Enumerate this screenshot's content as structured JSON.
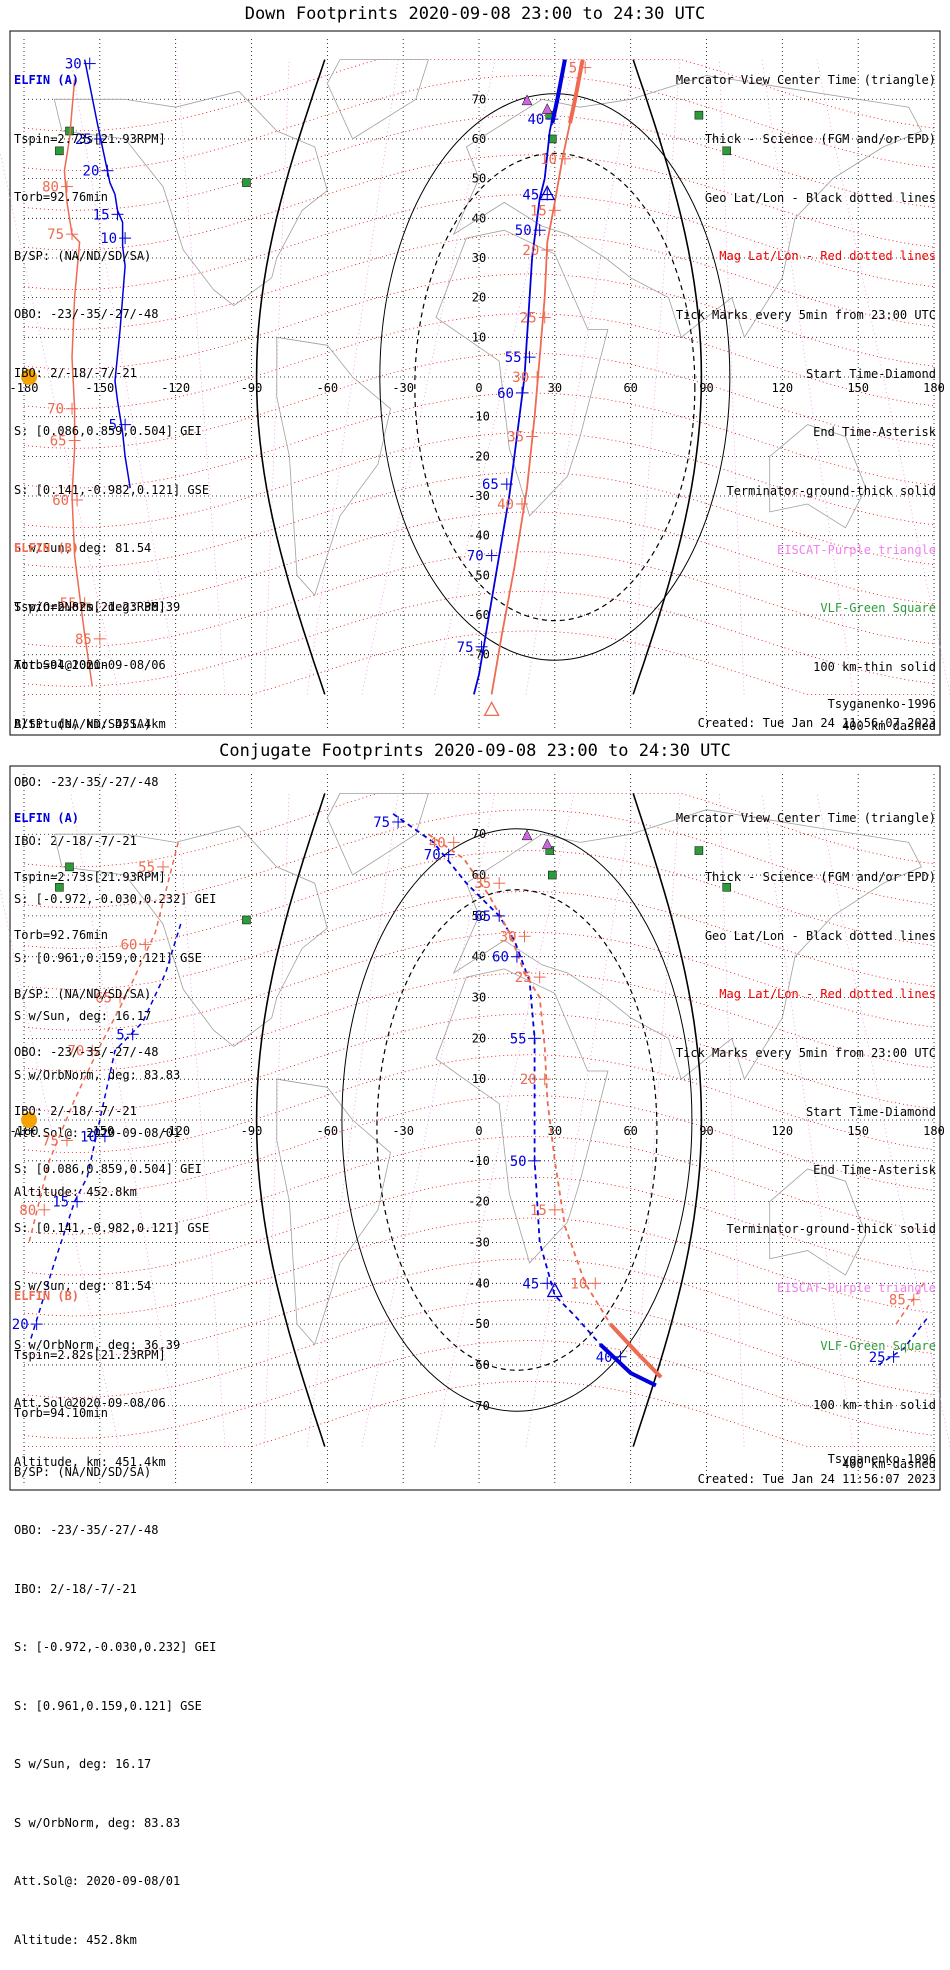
{
  "panels": [
    {
      "id": "down",
      "title": "Down Footprints 2020-09-08 23:00 to 24:30 UTC",
      "elfin_a": {
        "head": "ELFIN (A)",
        "lines": [
          "Tspin=2.73s[21.93RPM]",
          "Torb=92.76min",
          "B/SP: (NA/ND/SD/SA)",
          "OBO: -23/-35/-27/-48",
          "IBO: 2/-18/-7/-21",
          "S: [0.086,0.859,0.504] GEI",
          "S: [0.141,-0.982,0.121] GSE",
          "S w/Sun, deg: 81.54",
          "S w/OrbNorm, deg: 36.39",
          "Att.Sol@2020-09-08/06",
          "Altitude, km: 451.4km"
        ]
      },
      "elfin_b": {
        "head": "ELFIN (B)",
        "lines": [
          "Tspin=2.82s[21.23RPM]",
          "Torb=94.10min",
          "B/SP: (NA/ND/SD/SA)",
          "OBO: -23/-35/-27/-48",
          "IBO: 2/-18/-7/-21",
          "S: [-0.972,-0.030,0.232] GEI",
          "S: [0.961,0.159,0.121] GSE",
          "S w/Sun, deg: 16.17",
          "S w/OrbNorm, deg: 83.83",
          "Att.Sol@: 2020-09-08/01",
          "Altitude: 452.8km"
        ]
      },
      "model": "Tsyganenko-1996",
      "created": "Created: Tue Jan 24 11:56:07 2023"
    },
    {
      "id": "conj",
      "title": "Conjugate Footprints 2020-09-08 23:00 to 24:30 UTC",
      "elfin_a": {
        "head": "ELFIN (A)",
        "lines": [
          "Tspin=2.73s[21.93RPM]",
          "Torb=92.76min",
          "B/SP: (NA/ND/SD/SA)",
          "OBO: -23/-35/-27/-48",
          "IBO: 2/-18/-7/-21",
          "S: [0.086,0.859,0.504] GEI",
          "S: [0.141,-0.982,0.121] GSE",
          "S w/Sun, deg: 81.54",
          "S w/OrbNorm, deg: 36.39",
          "Att.Sol@2020-09-08/06",
          "Altitude, km: 451.4km"
        ]
      },
      "elfin_b": {
        "head": "ELFIN (B)",
        "lines": [
          "Tspin=2.82s[21.23RPM]",
          "Torb=94.10min",
          "B/SP: (NA/ND/SD/SA)",
          "OBO: -23/-35/-27/-48",
          "IBO: 2/-18/-7/-21",
          "S: [-0.972,-0.030,0.232] GEI",
          "S: [0.961,0.159,0.121] GSE",
          "S w/Sun, deg: 16.17",
          "S w/OrbNorm, deg: 83.83",
          "Att.Sol@: 2020-09-08/01",
          "Altitude: 452.8km"
        ]
      },
      "model": "Tsyganenko-1996",
      "created": "Created: Tue Jan 24 11:56:07 2023"
    }
  ],
  "legend": [
    {
      "text": "Mercator View Center Time (triangle)",
      "color": "#000000"
    },
    {
      "text": "Thick - Science (FGM and/or EPD)",
      "color": "#000000"
    },
    {
      "text": "Geo Lat/Lon - Black dotted lines",
      "color": "#000000"
    },
    {
      "text": "Mag Lat/Lon - Red dotted lines",
      "color": "#ee0000"
    },
    {
      "text": "Tick Marks every 5min from 23:00 UTC",
      "color": "#000000"
    },
    {
      "text": "Start Time-Diamond",
      "color": "#000000"
    },
    {
      "text": "End Time-Asterisk",
      "color": "#000000"
    },
    {
      "text": "Terminator-ground-thick solid",
      "color": "#000000"
    },
    {
      "text": "EISCAT-Purple triangle",
      "color": "#ee82ee"
    },
    {
      "text": "VLF-Green Square",
      "color": "#2e9b3a"
    },
    {
      "text": "100 km-thin solid",
      "color": "#000000"
    },
    {
      "text": "400 km-dashed",
      "color": "#000000"
    }
  ],
  "map": {
    "lon_ticks": [
      "-180",
      "-150",
      "-120",
      "-90",
      "-60",
      "-30",
      "0",
      "30",
      "60",
      "90",
      "120",
      "150",
      "180"
    ],
    "lat_ticks": [
      "-70",
      "-60",
      "-50",
      "-40",
      "-30",
      "-20",
      "-10",
      "0",
      "10",
      "20",
      "30",
      "40",
      "50",
      "60",
      "70"
    ],
    "lon_range": [
      -180,
      180
    ],
    "lat_range": [
      -80,
      80
    ],
    "colors": {
      "elfin_a": "#0000dd",
      "elfin_b": "#ee6a50",
      "mag_grid": "#ee0000",
      "geo_grid": "#000000",
      "eiscat": "#cc66dd",
      "vlf": "#2e9b3a",
      "sun": "#f5a300"
    },
    "eiscat_sites": [
      [
        19,
        69.6
      ],
      [
        27,
        67.4
      ]
    ],
    "vlf_sites": [
      [
        -162,
        62
      ],
      [
        -166,
        57
      ],
      [
        -92,
        49
      ],
      [
        28,
        66
      ],
      [
        29,
        60
      ],
      [
        87,
        66
      ],
      [
        98,
        57
      ]
    ]
  },
  "chart_data": [
    {
      "type": "map",
      "panel": "down",
      "elfin_a_track": [
        [
          -156,
          80
        ],
        [
          -151,
          64
        ],
        [
          -148,
          55
        ],
        [
          -146,
          49
        ],
        [
          -144,
          46
        ],
        [
          -143,
          42
        ],
        [
          -141,
          39
        ],
        [
          -141,
          33
        ],
        [
          -140,
          28
        ],
        [
          -142,
          12
        ],
        [
          -144,
          -1
        ],
        [
          -143,
          -6
        ],
        [
          -141,
          -14
        ],
        [
          -140,
          -20
        ],
        [
          -138,
          -28
        ]
      ],
      "elfin_a_ticks": [
        {
          "label": "30",
          "pos": [
            -154,
            79
          ]
        },
        {
          "label": "25",
          "pos": [
            -150,
            60
          ]
        },
        {
          "label": "20",
          "pos": [
            -147,
            52
          ]
        },
        {
          "label": "15",
          "pos": [
            -143,
            41
          ]
        },
        {
          "label": "10",
          "pos": [
            -140,
            35
          ]
        },
        {
          "label": "5",
          "pos": [
            -140,
            -12
          ]
        }
      ],
      "elfin_b_track": [
        [
          -160,
          75
        ],
        [
          -162,
          60
        ],
        [
          -164,
          52
        ],
        [
          -163,
          44
        ],
        [
          -161,
          36
        ],
        [
          -158,
          34
        ],
        [
          -160,
          20
        ],
        [
          -161,
          5
        ],
        [
          -160,
          -8
        ],
        [
          -160,
          -18
        ],
        [
          -161,
          -30
        ],
        [
          -160,
          -45
        ],
        [
          -158,
          -55
        ],
        [
          -156,
          -65
        ],
        [
          -153,
          -78
        ]
      ],
      "elfin_b_ticks": [
        {
          "label": "80",
          "pos": [
            -163,
            48
          ]
        },
        {
          "label": "75",
          "pos": [
            -161,
            36
          ]
        },
        {
          "label": "70",
          "pos": [
            -161,
            -8
          ]
        },
        {
          "label": "65",
          "pos": [
            -160,
            -16
          ]
        },
        {
          "label": "60",
          "pos": [
            -159,
            -31
          ]
        },
        {
          "label": "55",
          "pos": [
            -156,
            -57
          ]
        },
        {
          "label": "85",
          "pos": [
            -150,
            -66
          ]
        }
      ],
      "elfin_a_track2": [
        [
          34,
          80
        ],
        [
          30,
          68
        ],
        [
          28,
          62
        ],
        [
          26,
          50
        ],
        [
          24,
          45
        ],
        [
          21,
          30
        ],
        [
          20,
          20
        ],
        [
          19,
          10
        ],
        [
          18,
          0
        ],
        [
          15,
          -15
        ],
        [
          12,
          -30
        ],
        [
          8,
          -45
        ],
        [
          4,
          -60
        ],
        [
          0,
          -75
        ],
        [
          -2,
          -80
        ]
      ],
      "elfin_a_ticks2": [
        {
          "label": "40",
          "pos": [
            29,
            65
          ]
        },
        {
          "label": "45",
          "pos": [
            27,
            46
          ]
        },
        {
          "label": "50",
          "pos": [
            24,
            37
          ]
        },
        {
          "label": "55",
          "pos": [
            20,
            5
          ]
        },
        {
          "label": "60",
          "pos": [
            17,
            -4
          ]
        },
        {
          "label": "65",
          "pos": [
            11,
            -27
          ]
        },
        {
          "label": "70",
          "pos": [
            5,
            -45
          ]
        },
        {
          "label": "75",
          "pos": [
            1,
            -68
          ]
        }
      ],
      "elfin_b_track2": [
        [
          41,
          80
        ],
        [
          39,
          72
        ],
        [
          36,
          64
        ],
        [
          33,
          55
        ],
        [
          30,
          44
        ],
        [
          27,
          34
        ],
        [
          26,
          20
        ],
        [
          24,
          5
        ],
        [
          22,
          -10
        ],
        [
          19,
          -28
        ],
        [
          14,
          -48
        ],
        [
          9,
          -65
        ],
        [
          5,
          -80
        ]
      ],
      "elfin_b_ticks2": [
        {
          "label": "5",
          "pos": [
            42,
            78
          ]
        },
        {
          "label": "10",
          "pos": [
            34,
            55
          ]
        },
        {
          "label": "15",
          "pos": [
            30,
            42
          ]
        },
        {
          "label": "20",
          "pos": [
            27,
            32
          ]
        },
        {
          "label": "25",
          "pos": [
            26,
            15
          ]
        },
        {
          "label": "30",
          "pos": [
            23,
            0
          ]
        },
        {
          "label": "35",
          "pos": [
            21,
            -15
          ]
        },
        {
          "label": "40",
          "pos": [
            17,
            -32
          ]
        }
      ],
      "view_center": {
        "a": [
          27,
          46
        ],
        "b": [
          5,
          -80
        ]
      }
    },
    {
      "type": "map",
      "panel": "conj",
      "elfin_a_track": [
        [
          -118,
          48
        ],
        [
          -124,
          36
        ],
        [
          -133,
          24
        ],
        [
          -144,
          17
        ],
        [
          -150,
          0
        ],
        [
          -155,
          -14
        ],
        [
          -160,
          -20
        ],
        [
          -168,
          -35
        ],
        [
          -178,
          -55
        ]
      ],
      "elfin_a_ticks": [
        {
          "label": "5",
          "pos": [
            -137,
            21
          ]
        },
        {
          "label": "10",
          "pos": [
            -148,
            -4
          ]
        },
        {
          "label": "15",
          "pos": [
            -159,
            -20
          ]
        },
        {
          "label": "20",
          "pos": [
            -175,
            -50
          ]
        }
      ],
      "elfin_b_track": [
        [
          -119,
          68
        ],
        [
          -128,
          46
        ],
        [
          -140,
          30
        ],
        [
          -150,
          18
        ],
        [
          -160,
          5
        ],
        [
          -170,
          -10
        ],
        [
          -178,
          -30
        ]
      ],
      "elfin_b_ticks": [
        {
          "label": "55",
          "pos": [
            -125,
            62
          ]
        },
        {
          "label": "60",
          "pos": [
            -132,
            43
          ]
        },
        {
          "label": "65",
          "pos": [
            -142,
            30
          ]
        },
        {
          "label": "70",
          "pos": [
            -153,
            17
          ]
        },
        {
          "label": "75",
          "pos": [
            -163,
            -5
          ]
        },
        {
          "label": "80",
          "pos": [
            -172,
            -22
          ]
        }
      ],
      "elfin_a_track2": [
        [
          -34,
          75
        ],
        [
          -18,
          68
        ],
        [
          -5,
          58
        ],
        [
          8,
          50
        ],
        [
          14,
          44
        ],
        [
          20,
          34
        ],
        [
          22,
          20
        ],
        [
          22,
          0
        ],
        [
          22,
          -10
        ],
        [
          24,
          -30
        ],
        [
          30,
          -43
        ],
        [
          38,
          -48
        ],
        [
          48,
          -55
        ],
        [
          60,
          -62
        ],
        [
          70,
          -65
        ]
      ],
      "elfin_a_ticks2": [
        {
          "label": "75",
          "pos": [
            -32,
            73
          ]
        },
        {
          "label": "70",
          "pos": [
            -12,
            65
          ]
        },
        {
          "label": "65",
          "pos": [
            8,
            50
          ]
        },
        {
          "label": "60",
          "pos": [
            15,
            40
          ]
        },
        {
          "label": "55",
          "pos": [
            22,
            20
          ]
        },
        {
          "label": "50",
          "pos": [
            22,
            -10
          ]
        },
        {
          "label": "45",
          "pos": [
            27,
            -40
          ]
        },
        {
          "label": "40",
          "pos": [
            56,
            -58
          ]
        }
      ],
      "elfin_b_track2": [
        [
          -20,
          70
        ],
        [
          -6,
          64
        ],
        [
          4,
          55
        ],
        [
          12,
          46
        ],
        [
          18,
          36
        ],
        [
          24,
          30
        ],
        [
          26,
          18
        ],
        [
          27,
          5
        ],
        [
          30,
          -10
        ],
        [
          34,
          -26
        ],
        [
          42,
          -40
        ],
        [
          52,
          -50
        ],
        [
          64,
          -58
        ],
        [
          72,
          -63
        ]
      ],
      "elfin_b_ticks2": [
        {
          "label": "40",
          "pos": [
            -10,
            68
          ]
        },
        {
          "label": "35",
          "pos": [
            8,
            58
          ]
        },
        {
          "label": "30",
          "pos": [
            18,
            45
          ]
        },
        {
          "label": "25",
          "pos": [
            24,
            35
          ]
        },
        {
          "label": "20",
          "pos": [
            26,
            10
          ]
        },
        {
          "label": "15",
          "pos": [
            30,
            -22
          ]
        },
        {
          "label": "10",
          "pos": [
            46,
            -40
          ]
        }
      ],
      "elfin_b_track3": [
        [
          165,
          -50
        ],
        [
          176,
          -40
        ]
      ],
      "elfin_b_ticks3": [
        {
          "label": "85",
          "pos": [
            172,
            -44
          ]
        }
      ],
      "elfin_a_track3": [
        [
          158,
          -60
        ],
        [
          168,
          -56
        ],
        [
          178,
          -48
        ]
      ],
      "elfin_a_ticks3": [
        {
          "label": "25",
          "pos": [
            164,
            -58
          ]
        }
      ],
      "view_center": {
        "a": [
          30,
          -42
        ],
        "b": null
      }
    }
  ]
}
